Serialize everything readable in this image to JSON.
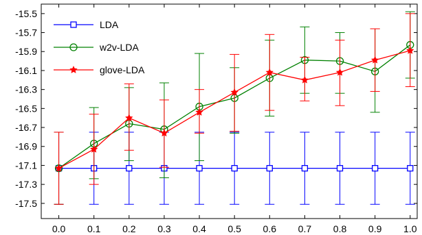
{
  "chart_data": {
    "type": "line",
    "title": "",
    "xlabel": "",
    "ylabel": "",
    "x": [
      0.0,
      0.1,
      0.2,
      0.3,
      0.4,
      0.5,
      0.6,
      0.7,
      0.8,
      0.9,
      1.0
    ],
    "xticks": [
      "0.0",
      "0.1",
      "0.2",
      "0.3",
      "0.4",
      "0.5",
      "0.6",
      "0.7",
      "0.8",
      "0.9",
      "1.0"
    ],
    "yticks": [
      "-15.5",
      "-15.7",
      "-15.9",
      "-16.1",
      "-16.3",
      "-16.5",
      "-16.7",
      "-16.9",
      "-17.1",
      "-17.3",
      "-17.5"
    ],
    "xlim": [
      -0.05,
      1.02
    ],
    "ylim": [
      -17.66,
      -15.4
    ],
    "grid": false,
    "legend_position": "top-left",
    "series": [
      {
        "name": "LDA",
        "color": "#0000ff",
        "marker": "square",
        "values": [
          -17.13,
          -17.13,
          -17.13,
          -17.13,
          -17.13,
          -17.13,
          -17.13,
          -17.13,
          -17.13,
          -17.13,
          -17.13
        ],
        "err_low": [
          -17.51,
          -17.51,
          -17.51,
          -17.51,
          -17.51,
          -17.51,
          -17.51,
          -17.51,
          -17.51,
          -17.51,
          -17.51
        ],
        "err_high": [
          -16.75,
          -16.75,
          -16.75,
          -16.75,
          -16.75,
          -16.75,
          -16.75,
          -16.75,
          -16.75,
          -16.75,
          -16.75
        ]
      },
      {
        "name": "w2v-LDA",
        "color": "#008000",
        "marker": "circle",
        "values": [
          -17.13,
          -16.87,
          -16.66,
          -16.72,
          -16.48,
          -16.39,
          -16.18,
          -15.99,
          -16.0,
          -16.11,
          -15.83
        ],
        "err_low": [
          -17.51,
          -17.24,
          -17.05,
          -17.23,
          -17.05,
          -16.76,
          -16.58,
          -16.34,
          -16.34,
          -16.54,
          -16.18
        ],
        "err_high": [
          -16.75,
          -16.49,
          -16.28,
          -16.23,
          -15.92,
          -16.07,
          -15.78,
          -15.64,
          -15.7,
          -15.66,
          -15.48
        ]
      },
      {
        "name": "glove-LDA",
        "color": "#ff0000",
        "marker": "star",
        "values": [
          -17.13,
          -16.93,
          -16.6,
          -16.76,
          -16.54,
          -16.33,
          -16.12,
          -16.2,
          -16.12,
          -15.99,
          -15.89
        ],
        "err_low": [
          -17.51,
          -17.3,
          -16.94,
          -17.12,
          -16.76,
          -16.74,
          -16.52,
          -16.42,
          -16.47,
          -16.32,
          -16.27
        ],
        "err_high": [
          -16.75,
          -16.56,
          -16.24,
          -16.41,
          -16.3,
          -15.93,
          -15.72,
          -15.96,
          -15.78,
          -15.66,
          -15.5
        ]
      }
    ]
  }
}
